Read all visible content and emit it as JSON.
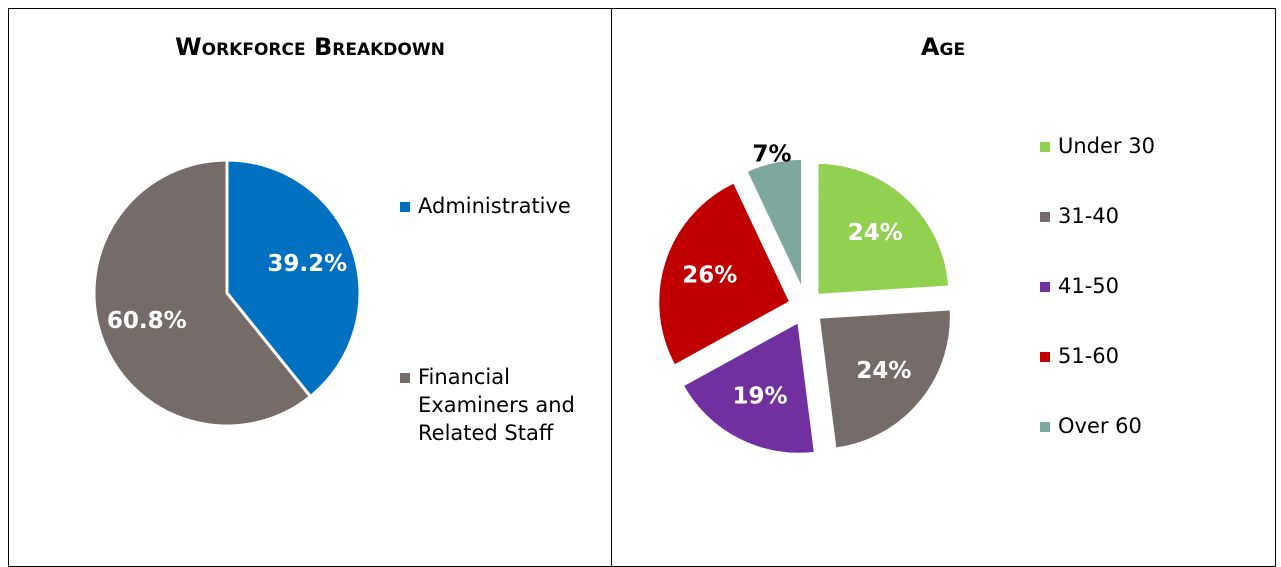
{
  "chart_data": [
    {
      "type": "pie",
      "title": "Workforce Breakdown",
      "categories": [
        "Administrative",
        "Financial Examiners and Related Staff"
      ],
      "values": [
        39.2,
        60.8
      ],
      "value_labels": [
        "39.2%",
        "60.8%"
      ],
      "colors": [
        "#0070c0",
        "#756b69"
      ],
      "legend": "right"
    },
    {
      "type": "pie",
      "title": "Age",
      "categories": [
        "Under 30",
        "31-40",
        "41-50",
        "51-60",
        "Over 60"
      ],
      "values": [
        24,
        24,
        19,
        26,
        7
      ],
      "value_labels": [
        "24%",
        "24%",
        "19%",
        "26%",
        "7%"
      ],
      "colors": [
        "#92d050",
        "#756b69",
        "#7030a0",
        "#c00000",
        "#7ea89e"
      ],
      "exploded": true,
      "legend": "right"
    }
  ]
}
